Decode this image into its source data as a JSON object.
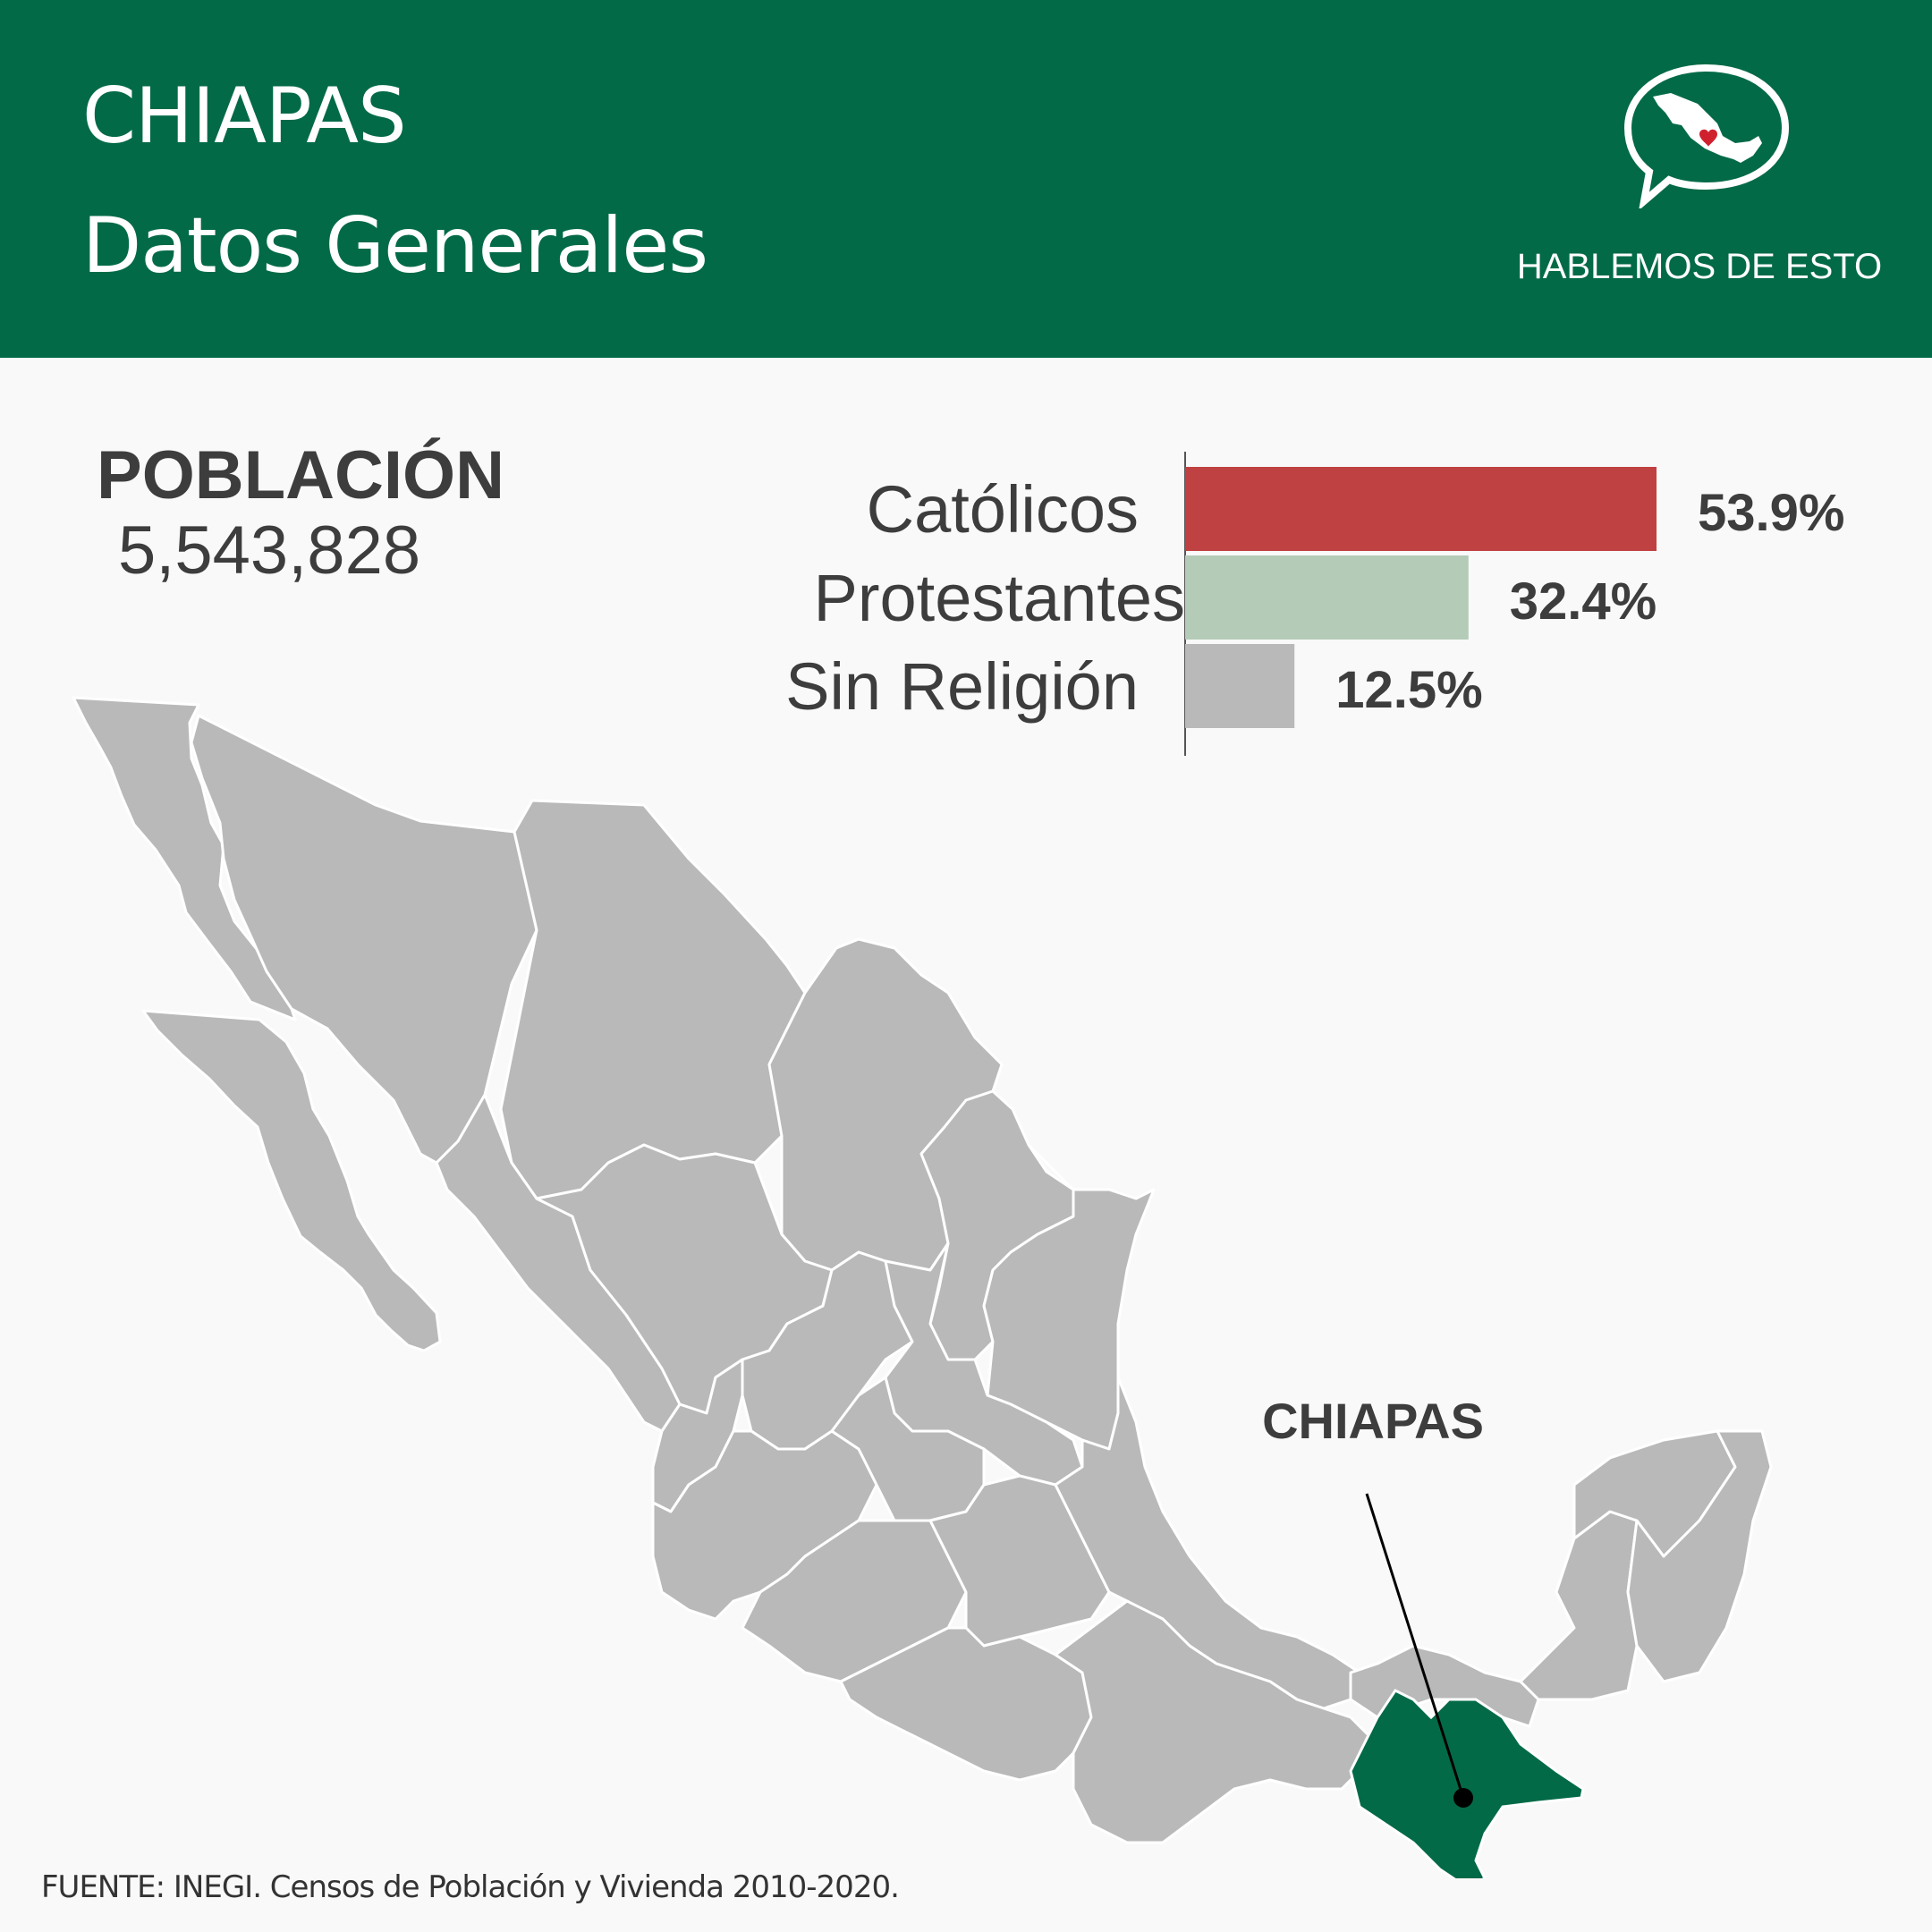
{
  "header": {
    "title_line1": "CHIAPAS",
    "title_line2": "Datos Generales",
    "brand": "HABLEMOS DE ESTO",
    "logo_icon": "speech-bubble-mexico-heart-icon",
    "bg_color": "#036a47"
  },
  "population": {
    "label": "POBLACIÓN",
    "value": "5,543,828"
  },
  "chart_data": {
    "type": "bar",
    "orientation": "horizontal",
    "categories": [
      "Católicos",
      "Protestantes",
      "Sin Religión"
    ],
    "values": [
      53.9,
      32.4,
      12.5
    ],
    "value_labels": [
      "53.9%",
      "32.4%",
      "12.5%"
    ],
    "colors": [
      "#c04141",
      "#b4cbb8",
      "#b9b9b9"
    ],
    "title": "",
    "xlabel": "",
    "ylabel": "",
    "xlim": [
      0,
      55
    ]
  },
  "map": {
    "highlight_label": "CHIAPAS",
    "highlight_color": "#036a47",
    "base_color": "#b9b9b9"
  },
  "source": "FUENTE: INEGI. Censos de Población y Vivienda 2010-2020."
}
